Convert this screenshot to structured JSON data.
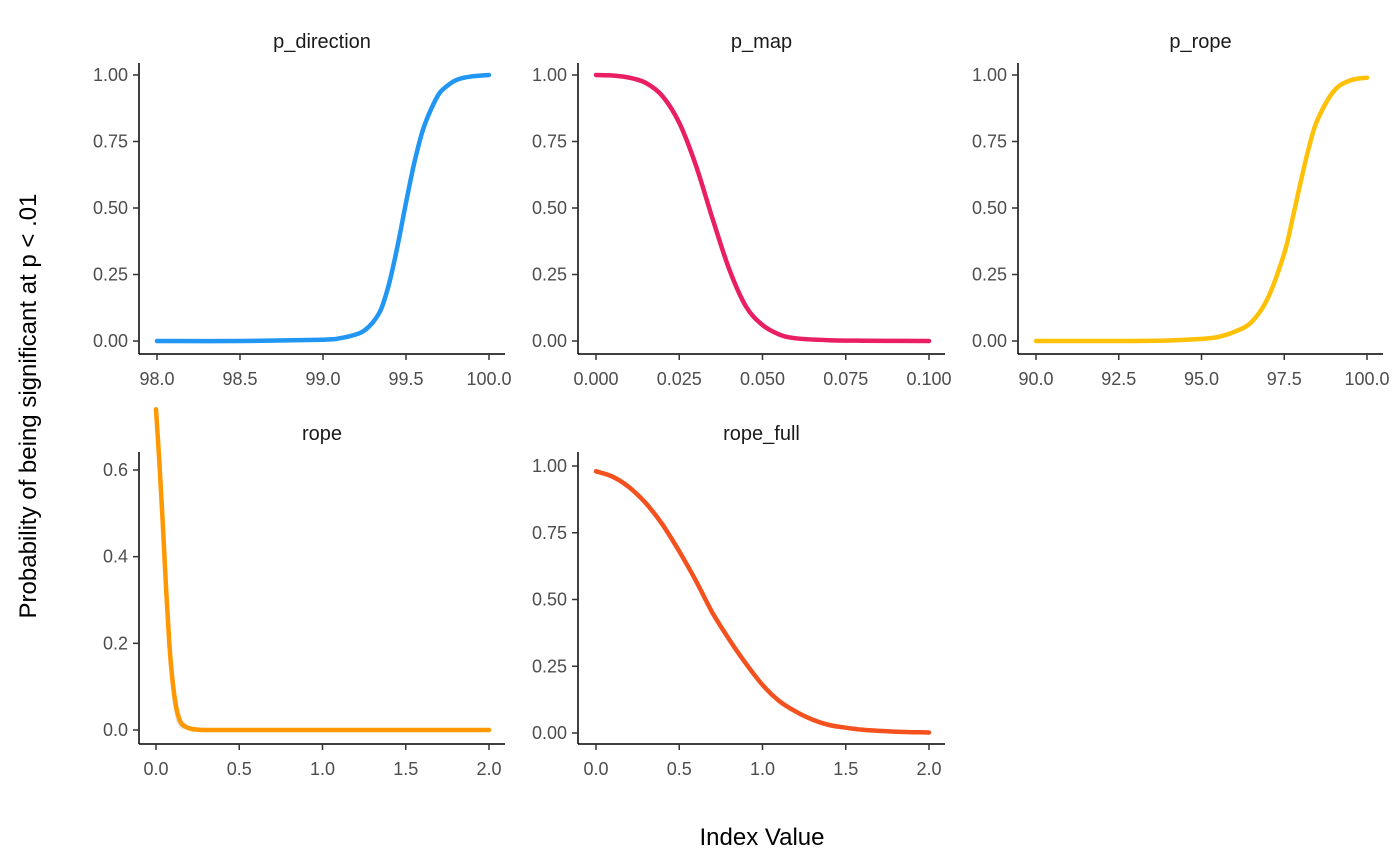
{
  "chart_data": {
    "type": "line",
    "facet": true,
    "xlabel": "Index Value",
    "ylabel": "Probability of being significant at p < .01",
    "grid": false,
    "legend": "none",
    "panels": [
      {
        "title": "p_direction",
        "color": "#2196F3",
        "xlim": [
          98.0,
          100.0
        ],
        "ylim": [
          0.0,
          1.0
        ],
        "xticks": [
          98.0,
          98.5,
          99.0,
          99.5,
          100.0
        ],
        "xtick_labels": [
          "98.0",
          "98.5",
          "99.0",
          "99.5",
          "100.0"
        ],
        "yticks": [
          0.0,
          0.25,
          0.5,
          0.75,
          1.0
        ],
        "ytick_labels": [
          "0.00",
          "0.25",
          "0.50",
          "0.75",
          "1.00"
        ],
        "x": [
          98.0,
          98.5,
          99.0,
          99.1,
          99.2,
          99.25,
          99.3,
          99.35,
          99.4,
          99.45,
          99.5,
          99.55,
          99.6,
          99.65,
          99.7,
          99.75,
          99.8,
          99.85,
          99.9,
          100.0
        ],
        "y": [
          0.0,
          0.0,
          0.005,
          0.01,
          0.025,
          0.04,
          0.07,
          0.12,
          0.22,
          0.36,
          0.52,
          0.67,
          0.79,
          0.87,
          0.93,
          0.96,
          0.98,
          0.99,
          0.995,
          1.0
        ]
      },
      {
        "title": "p_map",
        "color": "#E91E63",
        "xlim": [
          0.0,
          0.1
        ],
        "ylim": [
          0.0,
          1.0
        ],
        "xticks": [
          0.0,
          0.025,
          0.05,
          0.075,
          0.1
        ],
        "xtick_labels": [
          "0.000",
          "0.025",
          "0.050",
          "0.075",
          "0.100"
        ],
        "yticks": [
          0.0,
          0.25,
          0.5,
          0.75,
          1.0
        ],
        "ytick_labels": [
          "0.00",
          "0.25",
          "0.50",
          "0.75",
          "1.00"
        ],
        "x": [
          0.0,
          0.005,
          0.01,
          0.015,
          0.02,
          0.025,
          0.03,
          0.035,
          0.04,
          0.045,
          0.05,
          0.055,
          0.06,
          0.07,
          0.08,
          0.1
        ],
        "y": [
          1.0,
          0.998,
          0.99,
          0.97,
          0.92,
          0.82,
          0.66,
          0.46,
          0.27,
          0.13,
          0.06,
          0.025,
          0.01,
          0.003,
          0.001,
          0.0
        ]
      },
      {
        "title": "p_rope",
        "color": "#FFC107",
        "xlim": [
          90.0,
          100.0
        ],
        "ylim": [
          0.0,
          1.0
        ],
        "xticks": [
          90.0,
          92.5,
          95.0,
          97.5,
          100.0
        ],
        "xtick_labels": [
          "90.0",
          "92.5",
          "95.0",
          "97.5",
          "100.0"
        ],
        "yticks": [
          0.0,
          0.25,
          0.5,
          0.75,
          1.0
        ],
        "ytick_labels": [
          "0.00",
          "0.25",
          "0.50",
          "0.75",
          "1.00"
        ],
        "x": [
          90.0,
          92.5,
          94.0,
          95.0,
          95.5,
          96.0,
          96.5,
          97.0,
          97.5,
          97.75,
          98.0,
          98.25,
          98.5,
          99.0,
          99.5,
          100.0
        ],
        "y": [
          0.0,
          0.0,
          0.002,
          0.008,
          0.015,
          0.035,
          0.07,
          0.16,
          0.33,
          0.46,
          0.6,
          0.73,
          0.83,
          0.94,
          0.98,
          0.99
        ]
      },
      {
        "title": "rope",
        "color": "#FF9800",
        "xlim": [
          0.0,
          2.0
        ],
        "ylim": [
          0.0,
          0.74
        ],
        "xticks": [
          0.0,
          0.5,
          1.0,
          1.5,
          2.0
        ],
        "xtick_labels": [
          "0.0",
          "0.5",
          "1.0",
          "1.5",
          "2.0"
        ],
        "yticks": [
          0.0,
          0.2,
          0.4,
          0.6
        ],
        "ytick_labels": [
          "0.0",
          "0.2",
          "0.4",
          "0.6"
        ],
        "x": [
          0.0,
          0.02,
          0.04,
          0.06,
          0.08,
          0.1,
          0.12,
          0.14,
          0.16,
          0.2,
          0.25,
          0.3,
          0.5,
          1.0,
          1.5,
          2.0
        ],
        "y": [
          0.74,
          0.62,
          0.48,
          0.33,
          0.2,
          0.11,
          0.055,
          0.025,
          0.012,
          0.004,
          0.001,
          0.0,
          0.0,
          0.0,
          0.0,
          0.0
        ],
        "ribbon_lower": [
          0.74,
          0.6,
          0.44,
          0.27,
          0.14,
          0.06,
          0.02,
          0.006,
          0.002,
          0.0,
          0.0,
          0.0,
          0.0,
          0.0,
          0.0,
          0.0
        ],
        "ribbon_upper": [
          0.74,
          0.64,
          0.52,
          0.38,
          0.26,
          0.16,
          0.09,
          0.045,
          0.022,
          0.008,
          0.003,
          0.001,
          0.0,
          0.0,
          0.0,
          0.0
        ]
      },
      {
        "title": "rope_full",
        "color": "#F4511E",
        "xlim": [
          0.0,
          2.0
        ],
        "ylim": [
          0.0,
          1.0
        ],
        "xticks": [
          0.0,
          0.5,
          1.0,
          1.5,
          2.0
        ],
        "xtick_labels": [
          "0.0",
          "0.5",
          "1.0",
          "1.5",
          "2.0"
        ],
        "yticks": [
          0.0,
          0.25,
          0.5,
          0.75,
          1.0
        ],
        "ytick_labels": [
          "0.00",
          "0.25",
          "0.50",
          "0.75",
          "1.00"
        ],
        "x": [
          0.0,
          0.1,
          0.2,
          0.3,
          0.4,
          0.5,
          0.6,
          0.7,
          0.8,
          0.9,
          1.0,
          1.1,
          1.2,
          1.3,
          1.4,
          1.5,
          1.6,
          1.7,
          1.8,
          1.9,
          2.0
        ],
        "y": [
          0.98,
          0.96,
          0.92,
          0.86,
          0.78,
          0.68,
          0.57,
          0.45,
          0.35,
          0.26,
          0.18,
          0.12,
          0.08,
          0.05,
          0.03,
          0.02,
          0.012,
          0.008,
          0.005,
          0.003,
          0.002
        ]
      }
    ]
  }
}
